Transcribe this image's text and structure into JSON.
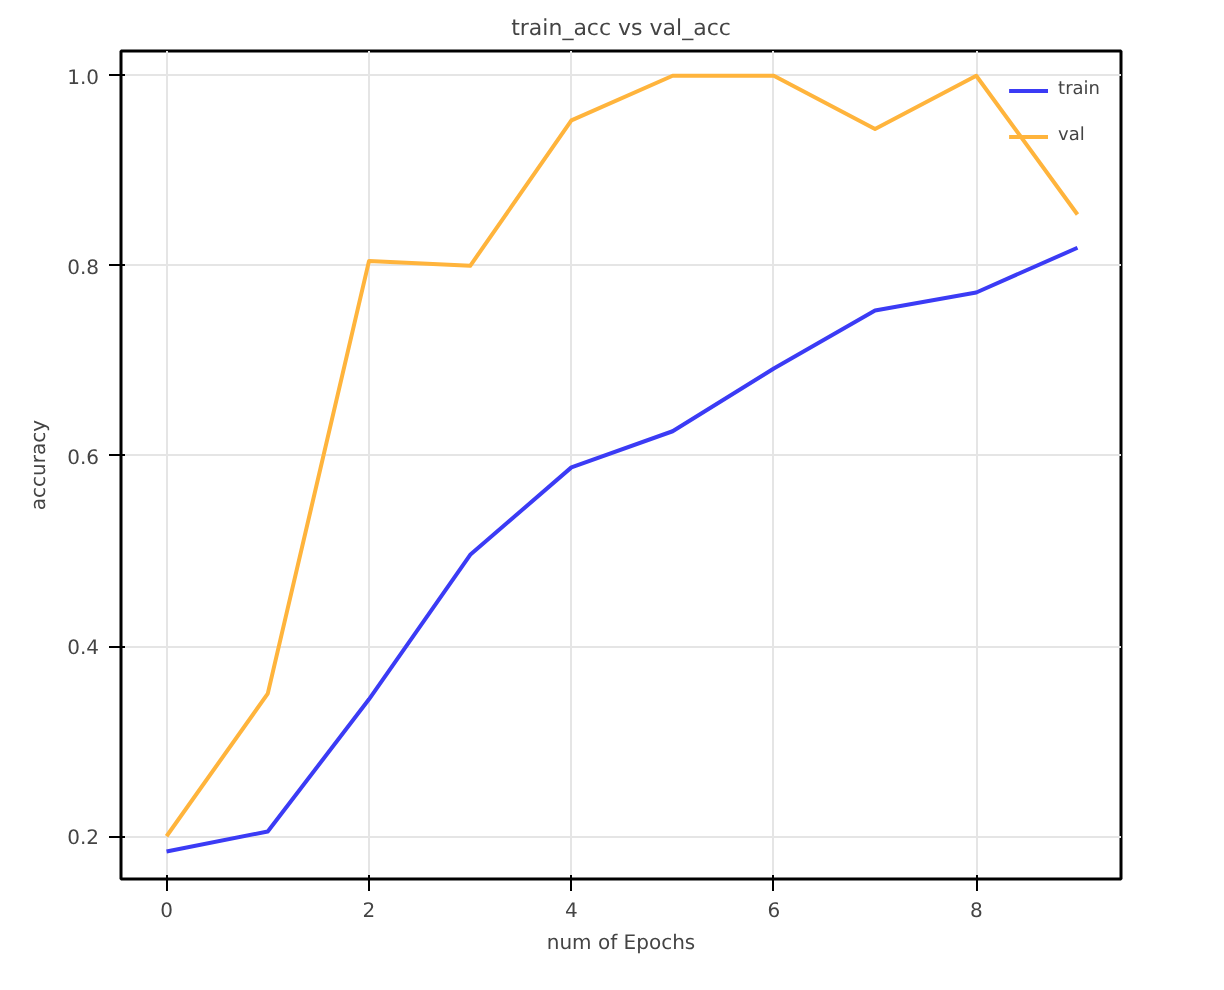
{
  "chart_data": {
    "type": "line",
    "title": "train_acc vs val_acc",
    "xlabel": "num of Epochs",
    "ylabel": "accuracy",
    "x": [
      0,
      1,
      2,
      3,
      4,
      5,
      6,
      7,
      8,
      9
    ],
    "series": [
      {
        "name": "train",
        "color": "#3b3bf5",
        "values": [
          0.184,
          0.205,
          0.344,
          0.496,
          0.588,
          0.626,
          0.692,
          0.753,
          0.772,
          0.819
        ]
      },
      {
        "name": "val",
        "color": "#ffb43c",
        "values": [
          0.2,
          0.35,
          0.805,
          0.8,
          0.953,
          1.0,
          1.0,
          0.944,
          1.0,
          0.854
        ]
      }
    ],
    "xlim": [
      -0.45,
      9.43
    ],
    "ylim": [
      0.155,
      1.026
    ],
    "xticks": [
      0,
      2,
      4,
      6,
      8
    ],
    "yticks": [
      {
        "value": 0.2,
        "label": "0.2"
      },
      {
        "value": 0.4,
        "label": "0.4"
      },
      {
        "value": 0.6,
        "label": "0.6"
      },
      {
        "value": 0.8,
        "label": "0.8"
      },
      {
        "value": 1.0,
        "label": "1.0"
      }
    ],
    "grid": true,
    "legend": "top right",
    "marker": "none",
    "line_style": "solid"
  }
}
